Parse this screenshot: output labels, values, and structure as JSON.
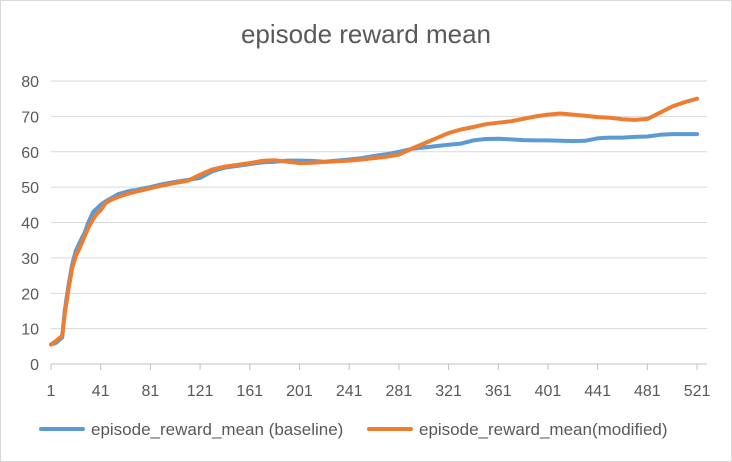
{
  "chart_data": {
    "type": "line",
    "title": "episode reward mean",
    "xlabel": "",
    "ylabel": "",
    "xlim": [
      1,
      529
    ],
    "ylim": [
      0,
      80
    ],
    "grid": true,
    "legend_position": "bottom",
    "x_ticks": [
      "1",
      "41",
      "81",
      "121",
      "161",
      "201",
      "241",
      "281",
      "321",
      "361",
      "401",
      "441",
      "481",
      "521"
    ],
    "y_ticks": [
      "0",
      "10",
      "20",
      "30",
      "40",
      "50",
      "60",
      "70",
      "80"
    ],
    "series": [
      {
        "name": "episode_reward_mean (baseline)",
        "color": "#5b9bd5",
        "x": [
          1,
          5,
          10,
          12,
          15,
          18,
          21,
          25,
          28,
          31,
          35,
          38,
          41,
          45,
          50,
          55,
          60,
          65,
          70,
          75,
          81,
          90,
          101,
          111,
          121,
          131,
          141,
          151,
          161,
          171,
          181,
          191,
          201,
          211,
          221,
          231,
          241,
          251,
          261,
          271,
          281,
          291,
          301,
          311,
          321,
          331,
          341,
          351,
          361,
          371,
          381,
          391,
          401,
          411,
          421,
          431,
          441,
          451,
          461,
          471,
          481,
          491,
          501,
          511,
          521
        ],
        "y": [
          5.5,
          6,
          7.5,
          15,
          22,
          28,
          32,
          35,
          37,
          40,
          43,
          44,
          45,
          46,
          47,
          48,
          48.5,
          49,
          49.2,
          49.6,
          50,
          50.8,
          51.5,
          52,
          52.6,
          54.5,
          55.5,
          56,
          56.5,
          57,
          57.2,
          57.5,
          57.5,
          57.4,
          57.2,
          57.5,
          57.8,
          58.2,
          58.8,
          59.3,
          60,
          60.8,
          61.2,
          61.6,
          62,
          62.3,
          63.2,
          63.6,
          63.7,
          63.5,
          63.3,
          63.2,
          63.2,
          63.1,
          63,
          63.1,
          63.8,
          64,
          64,
          64.2,
          64.3,
          64.8,
          65,
          65,
          65
        ]
      },
      {
        "name": "episode_reward_mean(modified)",
        "color": "#ed7d31",
        "x": [
          1,
          5,
          10,
          12,
          15,
          18,
          21,
          25,
          28,
          31,
          35,
          38,
          41,
          45,
          50,
          55,
          60,
          65,
          70,
          75,
          81,
          90,
          101,
          111,
          121,
          131,
          141,
          151,
          161,
          171,
          181,
          191,
          201,
          211,
          221,
          231,
          241,
          251,
          261,
          271,
          281,
          291,
          301,
          311,
          321,
          331,
          341,
          351,
          361,
          371,
          381,
          391,
          401,
          411,
          421,
          431,
          441,
          451,
          461,
          471,
          481,
          491,
          501,
          511,
          521
        ],
        "y": [
          5.5,
          6.5,
          8,
          14,
          21,
          27,
          30.5,
          33.5,
          36,
          38.5,
          41,
          42.5,
          43.5,
          45.5,
          46.5,
          47.2,
          47.8,
          48.3,
          48.8,
          49.2,
          49.7,
          50.4,
          51.2,
          51.8,
          53.5,
          55,
          55.8,
          56.3,
          56.8,
          57.4,
          57.6,
          57.2,
          56.8,
          56.9,
          57.1,
          57.3,
          57.5,
          57.8,
          58.2,
          58.6,
          59.2,
          60.8,
          62.3,
          63.8,
          65.3,
          66.3,
          67,
          67.8,
          68.2,
          68.6,
          69.3,
          70,
          70.5,
          70.8,
          70.5,
          70.2,
          69.8,
          69.6,
          69.2,
          69,
          69.3,
          71,
          72.8,
          74,
          75
        ]
      }
    ]
  }
}
